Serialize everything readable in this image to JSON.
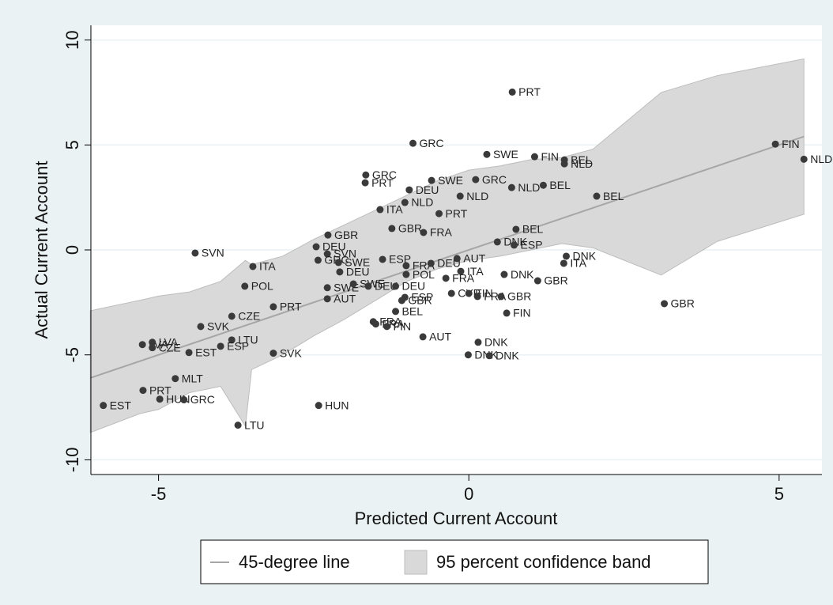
{
  "chart_data": {
    "type": "scatter",
    "x_label": "Predicted Current Account",
    "y_label": "Actual Current Account",
    "xlim": [
      -6.09,
      5.69
    ],
    "xticks": [
      -5,
      0,
      5
    ],
    "ylim": [
      -10.7,
      10.7
    ],
    "yticks": [
      -10,
      -5,
      0,
      5,
      10
    ],
    "grid": true,
    "points": {
      "color": "#3a3a3a",
      "x": [
        0.7,
        -0.9,
        0.29,
        1.06,
        1.54,
        1.54,
        4.94,
        5.4,
        -1.66,
        -1.67,
        -0.6,
        0.11,
        0.69,
        1.2,
        -0.96,
        -0.14,
        2.06,
        -1.03,
        -1.43,
        -0.48,
        -1.24,
        -0.73,
        0.76,
        -2.27,
        0.46,
        0.73,
        -2.46,
        -2.28,
        -4.41,
        -3.48,
        -2.43,
        -2.1,
        -1.39,
        -2.08,
        -1.01,
        -0.61,
        -0.19,
        1.57,
        1.53,
        0.57,
        -1.01,
        -0.13,
        -0.37,
        1.11,
        -3.61,
        -2.28,
        -1.86,
        -1.62,
        -1.18,
        -2.28,
        -1.03,
        -1.08,
        -0.28,
        0.0,
        0.14,
        0.52,
        -3.15,
        3.15,
        -1.18,
        0.61,
        -3.82,
        -1.54,
        -1.5,
        -1.32,
        -4.32,
        -0.74,
        -3.82,
        0.15,
        -5.26,
        -5.1,
        -5.1,
        -4.0,
        -4.51,
        -3.15,
        -0.01,
        0.33,
        -4.73,
        -5.25,
        -4.98,
        -4.59,
        -5.89,
        -2.42,
        -3.72
      ],
      "y": [
        7.52,
        5.08,
        4.55,
        4.44,
        4.29,
        4.1,
        5.04,
        4.32,
        3.57,
        3.2,
        3.31,
        3.35,
        2.97,
        3.08,
        2.86,
        2.56,
        2.56,
        2.26,
        1.92,
        1.73,
        1.02,
        0.83,
        0.98,
        0.71,
        0.38,
        0.23,
        0.15,
        -0.19,
        -0.15,
        -0.79,
        -0.49,
        -0.6,
        -0.45,
        -1.05,
        -0.75,
        -0.64,
        -0.41,
        -0.3,
        -0.64,
        -1.17,
        -1.17,
        -1.02,
        -1.35,
        -1.47,
        -1.73,
        -1.8,
        -1.62,
        -1.73,
        -1.73,
        -2.33,
        -2.26,
        -2.41,
        -2.07,
        -2.07,
        -2.22,
        -2.22,
        -2.71,
        -2.56,
        -2.93,
        -3.01,
        -3.16,
        -3.42,
        -3.53,
        -3.65,
        -3.65,
        -4.14,
        -4.29,
        -4.4,
        -4.51,
        -4.4,
        -4.66,
        -4.59,
        -4.89,
        -4.92,
        -5.0,
        -5.04,
        -6.13,
        -6.69,
        -7.11,
        -7.14,
        -7.41,
        -7.41,
        -8.35
      ],
      "labels": [
        "PRT",
        "GRC",
        "SWE",
        "FIN",
        "BEL",
        "NLD",
        "FIN",
        "NLD",
        "GRC",
        "PRT",
        "SWE",
        "GRC",
        "NLD",
        "BEL",
        "DEU",
        "NLD",
        "BEL",
        "NLD",
        "ITA",
        "PRT",
        "GBR",
        "FRA",
        "BEL",
        "GBR",
        "DNK",
        "ESP",
        "DEU",
        "SVN",
        "SVN",
        "ITA",
        "GRC",
        "SWE",
        "ESP",
        "DEU",
        "FRA",
        "DEU",
        "AUT",
        "DNK",
        "ITA",
        "DNK",
        "POL",
        "ITA",
        "FRA",
        "GBR",
        "POL",
        "SWE",
        "SWE",
        "DEU",
        "DEU",
        "AUT",
        "ESP",
        "GBR",
        "CYP",
        "FIN",
        "FRA",
        "GBR",
        "PRT",
        "GBR",
        "BEL",
        "FIN",
        "CZE",
        "FRA",
        "FRA",
        "FIN",
        "SVK",
        "AUT",
        "LTU",
        "DNK",
        "LVA",
        "LVA",
        "CZE",
        "ESP",
        "EST",
        "SVK",
        "DNK",
        "DNK",
        "MLT",
        "PRT",
        "HUN",
        "GRC",
        "EST",
        "HUN",
        "LTU"
      ]
    },
    "line": {
      "name": "45-degree line",
      "color": "#a6a6a6",
      "x": [
        -6.1,
        5.4
      ],
      "values": [
        -6.1,
        5.4
      ]
    },
    "band": {
      "name": "95 percent confidence band",
      "color": "#d9d9d9",
      "x": [
        -6.1,
        -5.3,
        -5.0,
        -4.5,
        -4.0,
        -3.6,
        -3.5,
        -3.0,
        -2.5,
        -2.0,
        -1.5,
        -1.0,
        -0.5,
        0,
        0.5,
        1.0,
        1.5,
        2.0,
        3.1,
        4.0,
        5.4
      ],
      "upper": [
        -2.9,
        -2.4,
        -2.2,
        -2.0,
        -1.5,
        -0.5,
        -0.7,
        -0.3,
        0.5,
        1.2,
        1.9,
        2.6,
        3.3,
        3.8,
        4.0,
        4.3,
        4.4,
        4.8,
        7.5,
        8.3,
        9.1
      ],
      "lower": [
        -8.7,
        -7.8,
        -7.6,
        -6.8,
        -6.5,
        -8.4,
        -5.7,
        -5.0,
        -4.1,
        -3.3,
        -2.4,
        -1.5,
        -0.9,
        -0.5,
        -0.3,
        0.0,
        0.3,
        0.1,
        -1.2,
        0.4,
        1.7
      ]
    }
  }
}
